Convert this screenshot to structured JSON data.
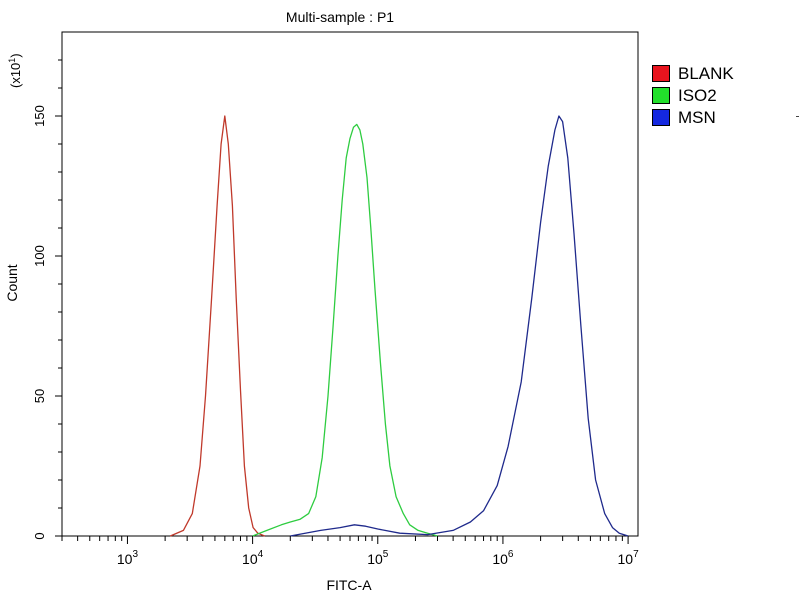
{
  "chart_data": {
    "type": "line",
    "title": "Multi-sample : P1",
    "xlabel": "FITC-A",
    "ylabel": "Count",
    "y_multiplier_label": "(x10",
    "y_multiplier_exp": "1",
    "x_scale": "log",
    "xlim": [
      300,
      12000000
    ],
    "ylim": [
      0,
      180
    ],
    "x_ticks": [
      {
        "value": 1000,
        "base": "10",
        "exp": "3"
      },
      {
        "value": 10000,
        "base": "10",
        "exp": "4"
      },
      {
        "value": 100000,
        "base": "10",
        "exp": "5"
      },
      {
        "value": 1000000,
        "base": "10",
        "exp": "6"
      },
      {
        "value": 10000000,
        "base": "10",
        "exp": "7"
      }
    ],
    "y_ticks": [
      {
        "value": 0,
        "label": "0"
      },
      {
        "value": 50,
        "label": "50"
      },
      {
        "value": 100,
        "label": "100"
      },
      {
        "value": 150,
        "label": "150"
      }
    ],
    "legend_position": "right",
    "grid": false,
    "series": [
      {
        "name": "BLANK",
        "color": "#c0392b",
        "legend_color": "#e8141e",
        "x": [
          2200,
          2800,
          3300,
          3800,
          4200,
          4700,
          5200,
          5600,
          6000,
          6400,
          6900,
          7400,
          8000,
          8600,
          9300,
          10100,
          11000,
          12500
        ],
        "y": [
          0,
          2,
          8,
          25,
          50,
          85,
          118,
          140,
          150,
          140,
          118,
          85,
          52,
          25,
          10,
          3,
          1,
          0
        ]
      },
      {
        "name": "ISO2",
        "color": "#2ecc40",
        "legend_color": "#22e02b",
        "x": [
          10000,
          13000,
          17000,
          20000,
          24000,
          28000,
          32000,
          36000,
          40000,
          44000,
          48000,
          52000,
          56000,
          60000,
          64000,
          68000,
          72000,
          76000,
          82000,
          88000,
          95000,
          105000,
          115000,
          125000,
          140000,
          160000,
          180000,
          210000,
          250000,
          300000
        ],
        "y": [
          0,
          2,
          4,
          5,
          6,
          8,
          14,
          28,
          50,
          75,
          100,
          120,
          135,
          142,
          146,
          147,
          145,
          140,
          128,
          110,
          88,
          62,
          40,
          25,
          14,
          8,
          4,
          2,
          1,
          0
        ]
      },
      {
        "name": "MSN",
        "color": "#1f2a8c",
        "legend_color": "#1428e0",
        "x": [
          20000,
          35000,
          50000,
          65000,
          80000,
          100000,
          150000,
          250000,
          400000,
          550000,
          700000,
          900000,
          1100000,
          1400000,
          1700000,
          2000000,
          2300000,
          2600000,
          2800000,
          3000000,
          3300000,
          3700000,
          4200000,
          4800000,
          5500000,
          6500000,
          7500000,
          8500000,
          10000000
        ],
        "y": [
          0,
          2,
          3,
          4,
          3.5,
          2.5,
          1,
          0.5,
          2,
          5,
          9,
          18,
          32,
          55,
          85,
          112,
          132,
          145,
          150,
          148,
          135,
          108,
          75,
          42,
          20,
          8,
          3,
          1,
          0
        ]
      }
    ]
  }
}
